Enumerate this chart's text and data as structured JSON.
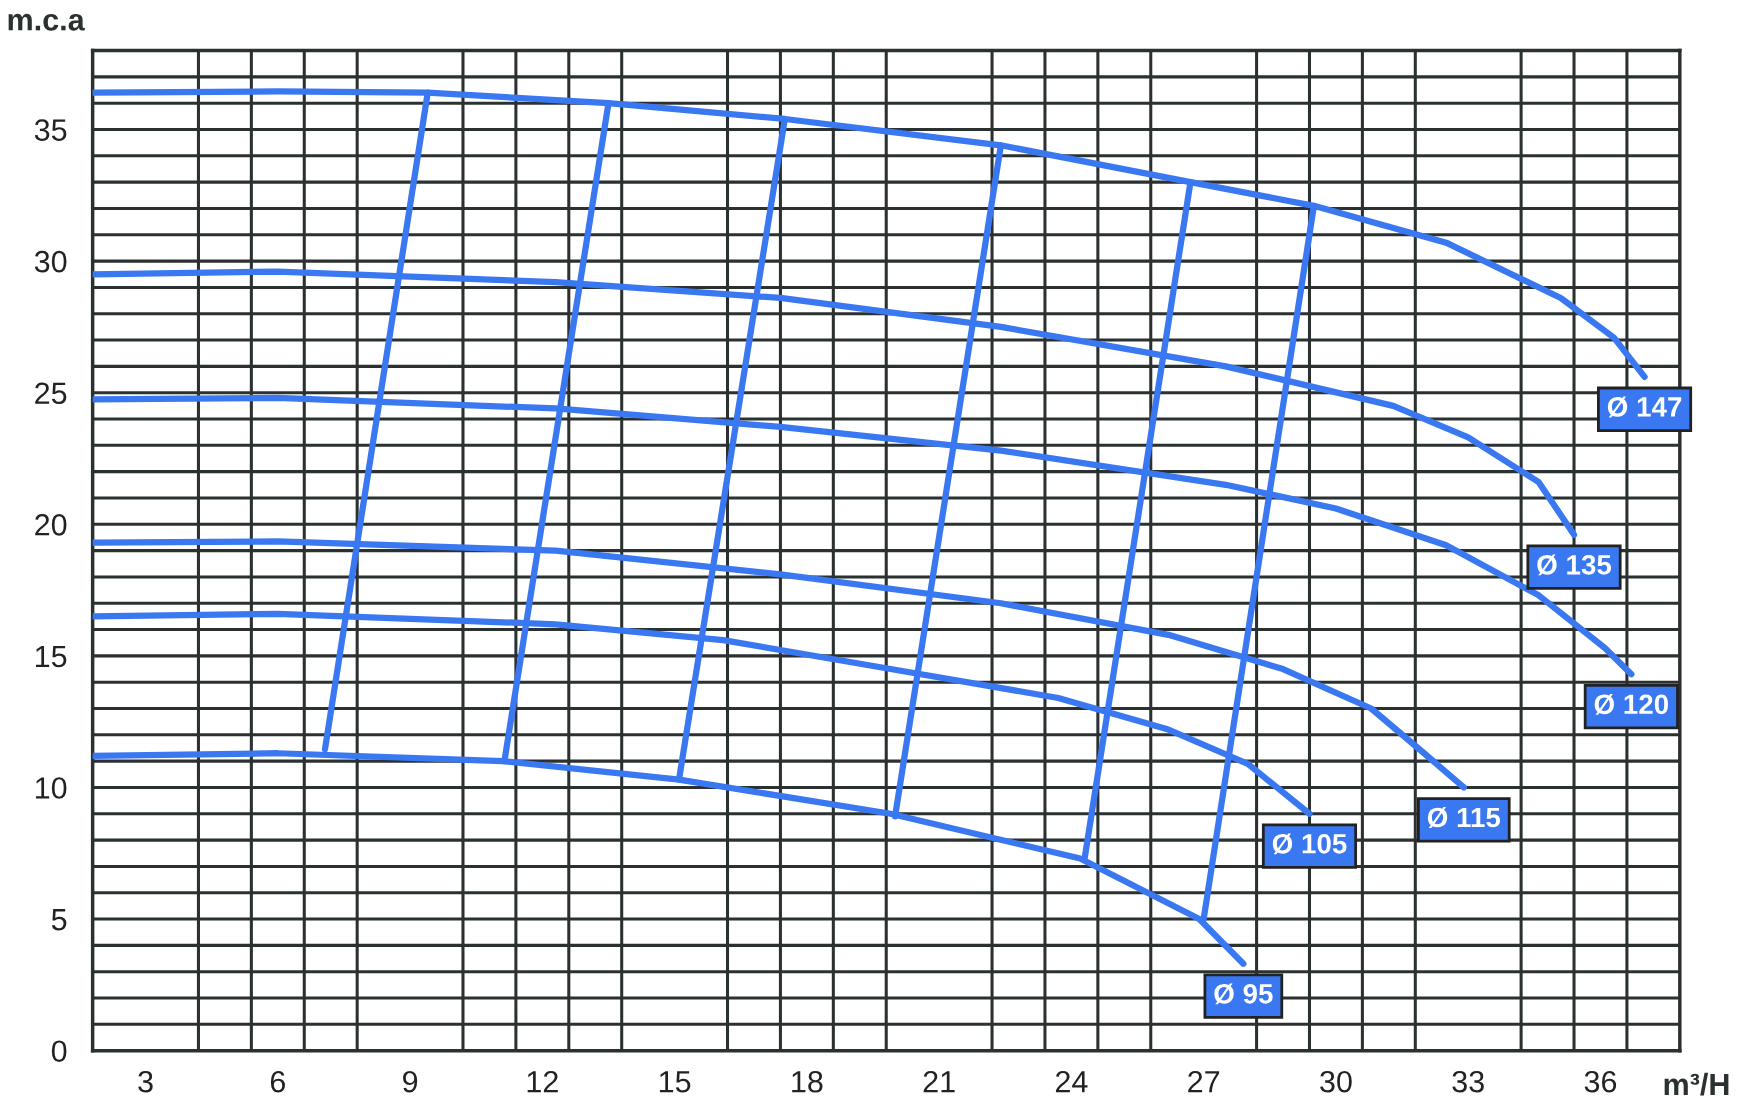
{
  "chart_data": {
    "type": "line",
    "xlabel": "m³/H",
    "ylabel": "m.c.a",
    "xlim": [
      1.8,
      37.8
    ],
    "ylim": [
      0,
      38
    ],
    "xticks": [
      3,
      6,
      9,
      12,
      15,
      18,
      21,
      24,
      27,
      30,
      33,
      36,
      {
        "value": 4.2,
        "label": null
      },
      {
        "value": 5.4,
        "label": null
      },
      {
        "value": 6.6,
        "label": null
      },
      {
        "value": 7.8,
        "label": null
      },
      {
        "value": 10.2,
        "label": null
      },
      {
        "value": 11.4,
        "label": null
      },
      {
        "value": 12.6,
        "label": null
      },
      {
        "value": 13.8,
        "label": null
      },
      {
        "value": 16.2,
        "label": null
      },
      {
        "value": 17.4,
        "label": null
      },
      {
        "value": 18.6,
        "label": null
      },
      {
        "value": 19.8,
        "label": null
      },
      {
        "value": 22.2,
        "label": null
      },
      {
        "value": 23.4,
        "label": null
      },
      {
        "value": 24.6,
        "label": null
      },
      {
        "value": 25.8,
        "label": null
      },
      {
        "value": 28.2,
        "label": null
      },
      {
        "value": 29.4,
        "label": null
      },
      {
        "value": 30.6,
        "label": null
      },
      {
        "value": 31.8,
        "label": null
      },
      {
        "value": 34.2,
        "label": null
      },
      {
        "value": 35.4,
        "label": null
      },
      {
        "value": 36.6,
        "label": null
      }
    ],
    "yticks": [
      0,
      {
        "value": 1,
        "label": null
      },
      {
        "value": 2,
        "label": null
      },
      {
        "value": 3,
        "label": null
      },
      {
        "value": 4,
        "label": null
      },
      5,
      {
        "value": 6,
        "label": null
      },
      {
        "value": 7,
        "label": null
      },
      {
        "value": 8,
        "label": null
      },
      {
        "value": 9,
        "label": null
      },
      10,
      {
        "value": 11,
        "label": null
      },
      {
        "value": 12,
        "label": null
      },
      {
        "value": 13,
        "label": null
      },
      {
        "value": 14,
        "label": null
      },
      15,
      {
        "value": 16,
        "label": null
      },
      {
        "value": 17,
        "label": null
      },
      {
        "value": 18,
        "label": null
      },
      {
        "value": 19,
        "label": null
      },
      20,
      {
        "value": 21,
        "label": null
      },
      {
        "value": 22,
        "label": null
      },
      {
        "value": 23,
        "label": null
      },
      {
        "value": 24,
        "label": null
      },
      25,
      {
        "value": 26,
        "label": null
      },
      {
        "value": 27,
        "label": null
      },
      {
        "value": 28,
        "label": null
      },
      {
        "value": 29,
        "label": null
      },
      30,
      {
        "value": 31,
        "label": null
      },
      {
        "value": 32,
        "label": null
      },
      {
        "value": 33,
        "label": null
      },
      {
        "value": 34,
        "label": null
      },
      35,
      {
        "value": 36,
        "label": null
      },
      {
        "value": 37,
        "label": null
      },
      {
        "value": 38,
        "label": null
      }
    ],
    "grid": true,
    "legend": false,
    "marker": "none",
    "line_style": "solid",
    "series": [
      {
        "name": "Ø 147",
        "color": "#3a78f2",
        "x": [
          1.8,
          6,
          9.4,
          13.5,
          17.5,
          22.4,
          26.7,
          29.5,
          32.5,
          35.1,
          36.3,
          37.0
        ],
        "values": [
          36.4,
          36.45,
          36.4,
          36.0,
          35.4,
          34.4,
          33.0,
          32.1,
          30.7,
          28.6,
          27.1,
          25.6
        ]
      },
      {
        "name": "Ø 135",
        "color": "#3a78f2",
        "x": [
          1.8,
          6,
          12.3,
          17.4,
          22.4,
          27.5,
          31.3,
          33.0,
          34.6,
          35.4
        ],
        "values": [
          29.5,
          29.6,
          29.2,
          28.6,
          27.5,
          26.0,
          24.5,
          23.3,
          21.6,
          19.6
        ]
      },
      {
        "name": "Ø 120",
        "color": "#3a78f2",
        "x": [
          1.8,
          6,
          12.3,
          17.4,
          22.4,
          27.5,
          30,
          32.5,
          34.6,
          36.1,
          36.7
        ],
        "values": [
          24.75,
          24.8,
          24.4,
          23.7,
          22.8,
          21.5,
          20.6,
          19.2,
          17.3,
          15.3,
          14.3
        ]
      },
      {
        "name": "Ø 115",
        "color": "#3a78f2",
        "x": [
          1.8,
          6,
          12.3,
          17.4,
          22.4,
          26.2,
          28.8,
          30.8,
          32.0,
          32.9
        ],
        "values": [
          19.3,
          19.35,
          19.0,
          18.1,
          17.0,
          15.8,
          14.5,
          13.0,
          11.3,
          10.0
        ]
      },
      {
        "name": "Ø 105",
        "color": "#3a78f2",
        "x": [
          1.8,
          6,
          12.3,
          16.1,
          19.9,
          23.7,
          26.2,
          28.0,
          29.4
        ],
        "values": [
          16.5,
          16.6,
          16.2,
          15.6,
          14.5,
          13.4,
          12.2,
          10.9,
          9.0
        ]
      },
      {
        "name": "Ø 95",
        "color": "#3a78f2",
        "x": [
          1.8,
          6,
          11.1,
          15.1,
          19.9,
          24.2,
          26.9,
          27.9
        ],
        "values": [
          11.2,
          11.3,
          11.0,
          10.3,
          9.0,
          7.3,
          5.0,
          3.3
        ]
      },
      {
        "color": "#3a78f2",
        "x": [
          9.4,
          7.07
        ],
        "values": [
          36.4,
          11.45
        ]
      },
      {
        "color": "#3a78f2",
        "x": [
          13.5,
          11.14
        ],
        "values": [
          36.0,
          11.0
        ]
      },
      {
        "color": "#3a78f2",
        "x": [
          17.5,
          15.1
        ],
        "values": [
          35.4,
          10.3
        ]
      },
      {
        "color": "#3a78f2",
        "x": [
          22.4,
          20.0
        ],
        "values": [
          34.4,
          8.9
        ]
      },
      {
        "color": "#3a78f2",
        "x": [
          26.7,
          24.3
        ],
        "values": [
          33.0,
          7.3
        ]
      },
      {
        "color": "#3a78f2",
        "x": [
          29.5,
          27.0
        ],
        "values": [
          32.1,
          5.0
        ]
      }
    ]
  }
}
